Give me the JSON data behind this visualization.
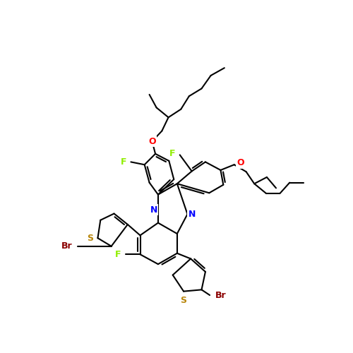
{
  "background": "#ffffff",
  "bond_color": "#000000",
  "bond_lw": 1.5,
  "figsize": [
    5.0,
    5.0
  ],
  "dpi": 100,
  "atom_colors": {
    "N": "#0000FF",
    "O": "#FF0000",
    "S": "#B8860B",
    "F": "#90EE00",
    "Br": "#8B0000"
  }
}
